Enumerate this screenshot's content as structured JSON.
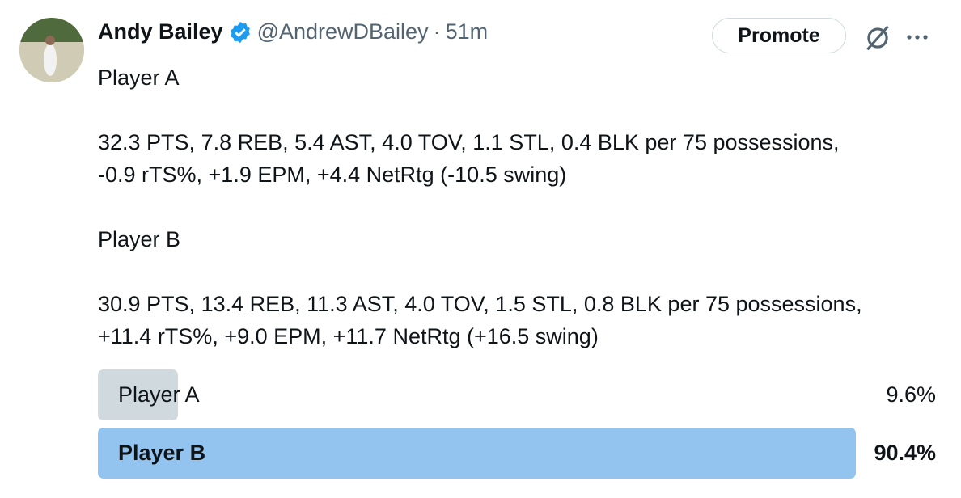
{
  "author": {
    "name": "Andy Bailey",
    "handle": "@AndrewDBailey",
    "separator": "·",
    "time": "51m"
  },
  "actions": {
    "promote": "Promote"
  },
  "body": [
    [
      "Player A"
    ],
    [
      "32.3 PTS, 7.8 REB, 5.4 AST, 4.0 TOV, 1.1 STL, 0.4 BLK per 75 possessions,",
      "-0.9 rTS%, +1.9 EPM, +4.4 NetRtg (-10.5 swing)"
    ],
    [
      "Player B"
    ],
    [
      "30.9 PTS, 13.4 REB, 11.3 AST, 4.0 TOV, 1.5 STL, 0.8 BLK per 75 possessions,",
      "+11.4 rTS%, +9.0 EPM, +11.7 NetRtg (+16.5 swing)"
    ]
  ],
  "poll": {
    "options": [
      "Player A",
      "Player B"
    ],
    "values": [
      9.6,
      90.4
    ],
    "value_labels": [
      "9.6%",
      "90.4%"
    ]
  }
}
